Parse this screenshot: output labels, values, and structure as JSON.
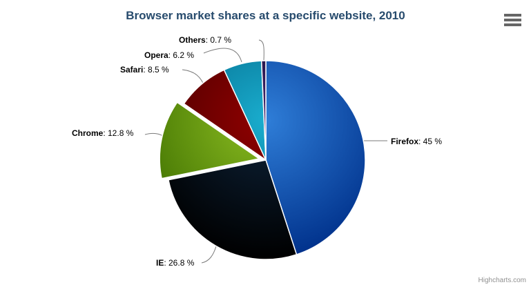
{
  "chart": {
    "title": "Browser market shares at a specific website, 2010",
    "title_color": "#274b6d",
    "background_color": "#ffffff"
  },
  "chart_data": {
    "type": "pie",
    "title": "Browser market shares at a specific website, 2010",
    "legend": false,
    "gridlines": false,
    "label_format": "name: value %",
    "slices": [
      {
        "name": "Firefox",
        "value": 45,
        "value_text": "45 %",
        "color": "#2f7ed8",
        "sliced": false
      },
      {
        "name": "IE",
        "value": 26.8,
        "value_text": "26.8 %",
        "color": "#0d233a",
        "sliced": false
      },
      {
        "name": "Chrome",
        "value": 12.8,
        "value_text": "12.8 %",
        "color": "#8bbc21",
        "sliced": true
      },
      {
        "name": "Safari",
        "value": 8.5,
        "value_text": "8.5 %",
        "color": "#910000",
        "sliced": false
      },
      {
        "name": "Opera",
        "value": 6.2,
        "value_text": "6.2 %",
        "color": "#1aadce",
        "sliced": false
      },
      {
        "name": "Others",
        "value": 0.7,
        "value_text": "0.7 %",
        "color": "#492970",
        "sliced": false
      }
    ]
  },
  "toolbar": {
    "context_menu_icon": "hamburger-icon"
  },
  "credits": {
    "label": "Highcharts.com"
  }
}
